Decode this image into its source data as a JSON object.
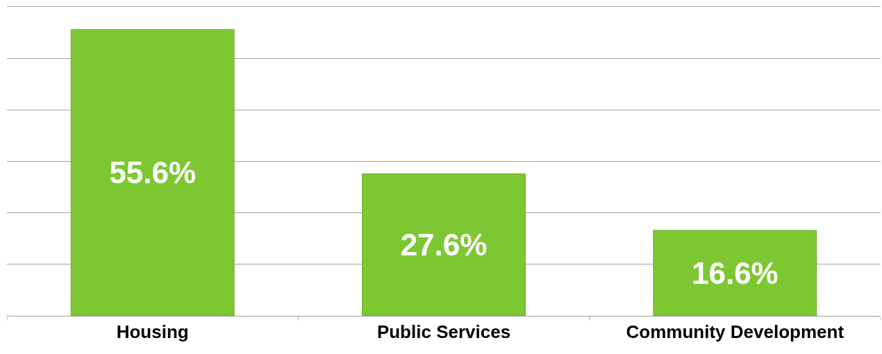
{
  "chart_data": {
    "type": "bar",
    "categories": [
      "Housing",
      "Public Services",
      "Community Development"
    ],
    "values": [
      55.6,
      27.6,
      16.6
    ],
    "value_labels": [
      "55.6%",
      "27.6%",
      "16.6%"
    ],
    "color": "#7dc832",
    "ylim": [
      0,
      60
    ],
    "yticks": [
      {
        "value": 0,
        "label": null
      },
      {
        "value": 10,
        "label": null
      },
      {
        "value": 20,
        "label": null
      },
      {
        "value": 30,
        "label": null
      },
      {
        "value": 40,
        "label": null
      },
      {
        "value": 50,
        "label": null
      },
      {
        "value": 60,
        "label": null
      }
    ],
    "grid": "y",
    "tick_labels": "x",
    "legend": false
  }
}
